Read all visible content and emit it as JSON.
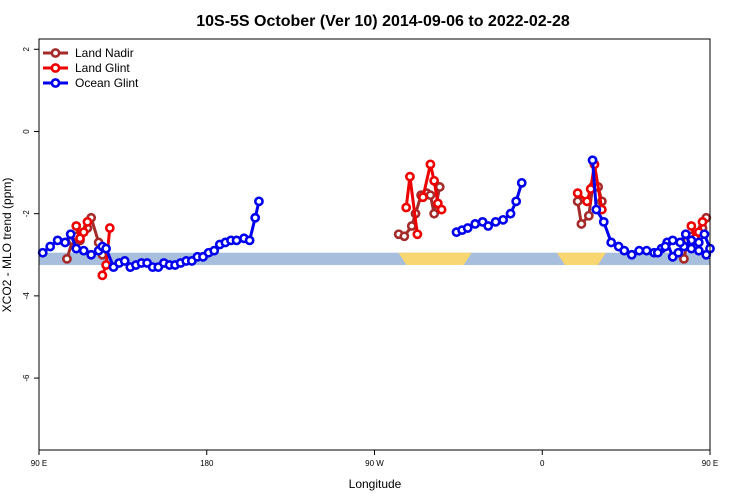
{
  "chart_data": {
    "type": "line",
    "title": "10S-5S October (Ver 10)   2014-09-06 to 2022-02-28",
    "xlabel": "Longitude",
    "ylabel": "XCO2 - MLO trend (ppm)",
    "xlim": [
      90,
      450
    ],
    "ylim": [
      -7.75,
      2.25
    ],
    "xticks": [
      {
        "value": 90,
        "label": "90 E"
      },
      {
        "value": 180,
        "label": "180"
      },
      {
        "value": 270,
        "label": "90 W"
      },
      {
        "value": 360,
        "label": "0"
      },
      {
        "value": 450,
        "label": "90 E"
      },
      {
        "value": 540,
        "label": "180"
      }
    ],
    "yticks": [
      {
        "value": 2,
        "label": "2"
      },
      {
        "value": 0,
        "label": "0"
      },
      {
        "value": -2,
        "label": "-2"
      },
      {
        "value": -4,
        "label": "-4"
      },
      {
        "value": -6,
        "label": "-6"
      }
    ],
    "legend_position": "top-left",
    "surface_band": {
      "ymin": -3.25,
      "ymax": -2.95,
      "ocean_color": "#a7bedc",
      "land_color": "#f8d772",
      "land_segments": [
        [
          285,
          320
        ],
        [
          370,
          392
        ]
      ]
    },
    "series": [
      {
        "name": "Land Nadir",
        "color": "#a52a2a",
        "segments": [
          [
            [
              105,
              -3.1
            ],
            [
              108,
              -2.65
            ],
            [
              110,
              -2.55
            ],
            [
              112,
              -2.65
            ],
            [
              116,
              -2.35
            ],
            [
              118,
              -2.1
            ],
            [
              122,
              -2.7
            ],
            [
              124,
              -3.0
            ]
          ],
          [
            [
              379,
              -1.7
            ],
            [
              381,
              -2.25
            ],
            [
              385,
              -2.05
            ],
            [
              387,
              -1.35
            ],
            [
              390,
              -1.35
            ],
            [
              392,
              -1.7
            ]
          ],
          [
            [
              436,
              -3.1
            ],
            [
              438,
              -2.65
            ],
            [
              440,
              -2.55
            ],
            [
              442,
              -2.65
            ],
            [
              446,
              -2.35
            ],
            [
              448,
              -2.1
            ],
            [
              452,
              -2.7
            ],
            [
              454,
              -3.0
            ]
          ],
          [
            [
              283,
              -2.5
            ],
            [
              286,
              -2.55
            ],
            [
              290,
              -2.3
            ],
            [
              292,
              -2.0
            ],
            [
              295,
              -1.55
            ],
            [
              298,
              -1.5
            ],
            [
              300,
              -1.55
            ],
            [
              302,
              -2.0
            ],
            [
              305,
              -1.35
            ]
          ]
        ]
      },
      {
        "name": "Land Glint",
        "color": "#ee0000",
        "segments": [
          [
            [
              110,
              -2.3
            ],
            [
              112,
              -2.6
            ],
            [
              114,
              -2.45
            ],
            [
              116,
              -2.2
            ]
          ],
          [
            [
              124,
              -3.5
            ],
            [
              126,
              -3.25
            ],
            [
              128,
              -2.35
            ]
          ],
          [
            [
              287,
              -1.85
            ],
            [
              289,
              -1.1
            ],
            [
              293,
              -2.5
            ]
          ],
          [
            [
              296,
              -1.6
            ],
            [
              300,
              -0.8
            ],
            [
              302,
              -1.2
            ],
            [
              304,
              -1.75
            ],
            [
              306,
              -1.9
            ]
          ],
          [
            [
              379,
              -1.5
            ],
            [
              384,
              -1.7
            ],
            [
              386,
              -1.4
            ],
            [
              388,
              -0.8
            ],
            [
              392,
              -1.9
            ]
          ],
          [
            [
              440,
              -2.3
            ],
            [
              442,
              -2.6
            ],
            [
              444,
              -2.45
            ],
            [
              446,
              -2.2
            ]
          ],
          [
            [
              454,
              -3.5
            ],
            [
              456,
              -3.25
            ],
            [
              458,
              -2.35
            ]
          ]
        ]
      },
      {
        "name": "Ocean Glint",
        "color": "#0000ee",
        "segments": [
          [
            [
              92,
              -2.95
            ],
            [
              96,
              -2.8
            ],
            [
              100,
              -2.65
            ],
            [
              104,
              -2.7
            ],
            [
              107,
              -2.5
            ],
            [
              110,
              -2.85
            ],
            [
              114,
              -2.9
            ],
            [
              118,
              -3.0
            ],
            [
              122,
              -2.9
            ],
            [
              124,
              -2.8
            ],
            [
              126,
              -2.85
            ],
            [
              130,
              -3.3
            ],
            [
              133,
              -3.2
            ],
            [
              136,
              -3.15
            ],
            [
              139,
              -3.3
            ],
            [
              142,
              -3.25
            ],
            [
              145,
              -3.2
            ],
            [
              148,
              -3.2
            ],
            [
              151,
              -3.3
            ],
            [
              154,
              -3.3
            ],
            [
              157,
              -3.2
            ],
            [
              160,
              -3.25
            ],
            [
              163,
              -3.25
            ],
            [
              166,
              -3.2
            ],
            [
              169,
              -3.15
            ],
            [
              172,
              -3.15
            ],
            [
              175,
              -3.05
            ],
            [
              178,
              -3.05
            ],
            [
              181,
              -2.95
            ],
            [
              184,
              -2.9
            ],
            [
              187,
              -2.75
            ],
            [
              190,
              -2.7
            ],
            [
              193,
              -2.65
            ],
            [
              196,
              -2.65
            ],
            [
              200,
              -2.6
            ],
            [
              203,
              -2.65
            ],
            [
              206,
              -2.1
            ],
            [
              208,
              -1.7
            ]
          ],
          [
            [
              314,
              -2.45
            ],
            [
              317,
              -2.4
            ],
            [
              320,
              -2.35
            ],
            [
              324,
              -2.25
            ],
            [
              328,
              -2.2
            ],
            [
              331,
              -2.3
            ],
            [
              335,
              -2.2
            ],
            [
              339,
              -2.15
            ],
            [
              343,
              -2.0
            ],
            [
              346,
              -1.7
            ],
            [
              349,
              -1.25
            ]
          ],
          [
            [
              387,
              -0.7
            ],
            [
              389,
              -1.9
            ],
            [
              393,
              -2.2
            ],
            [
              397,
              -2.7
            ],
            [
              401,
              -2.8
            ],
            [
              404,
              -2.9
            ],
            [
              408,
              -3.0
            ],
            [
              412,
              -2.9
            ],
            [
              416,
              -2.9
            ],
            [
              420,
              -2.95
            ],
            [
              424,
              -2.85
            ],
            [
              427,
              -2.7
            ],
            [
              430,
              -3.05
            ],
            [
              433,
              -2.95
            ],
            [
              436,
              -2.8
            ],
            [
              440,
              -2.65
            ],
            [
              444,
              -2.7
            ],
            [
              447,
              -2.5
            ],
            [
              450,
              -2.85
            ]
          ],
          [
            [
              422,
              -2.95
            ],
            [
              426,
              -2.8
            ],
            [
              430,
              -2.65
            ],
            [
              434,
              -2.7
            ],
            [
              437,
              -2.5
            ],
            [
              440,
              -2.85
            ],
            [
              444,
              -2.9
            ],
            [
              448,
              -3.0
            ],
            [
              452,
              -2.9
            ],
            [
              454,
              -2.8
            ],
            [
              456,
              -2.85
            ],
            [
              460,
              -3.3
            ],
            [
              463,
              -3.2
            ],
            [
              466,
              -3.15
            ],
            [
              469,
              -3.3
            ],
            [
              472,
              -3.25
            ],
            [
              475,
              -3.2
            ]
          ]
        ]
      }
    ]
  }
}
